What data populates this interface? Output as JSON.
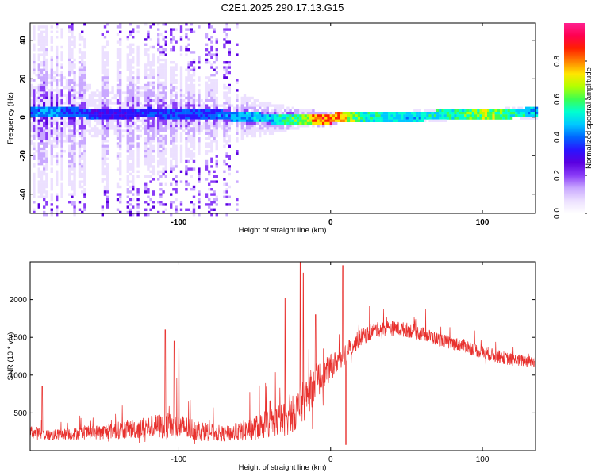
{
  "title": "C2E1.2025.290.17.13.G15",
  "colors": {
    "snr_line": "#e8302d",
    "colormap": [
      "#ffffff",
      "#ece0ff",
      "#c9a8ff",
      "#8a3cf7",
      "#5a00e0",
      "#2b14ff",
      "#0066ff",
      "#00c8ff",
      "#00ffd0",
      "#3cff50",
      "#b4ff00",
      "#ffe600",
      "#ff8000",
      "#ff2000",
      "#ff0050",
      "#ff2090"
    ]
  },
  "chart_data": [
    {
      "type": "heatmap",
      "name": "spectrogram",
      "xlabel": "Height of straight line (km)",
      "ylabel": "Frequency (Hz)",
      "xlim": [
        -198,
        135
      ],
      "ylim": [
        -50,
        49
      ],
      "xticks": [
        -100,
        0,
        100
      ],
      "xtick_labels": [
        "-100",
        "0",
        "100"
      ],
      "yticks": [
        -40,
        -20,
        0,
        20,
        40
      ],
      "ytick_labels": [
        "-40",
        "-20",
        "0",
        "20",
        "40"
      ],
      "colorbar": {
        "label": "Normalized spectral amplitude",
        "range": [
          0,
          1
        ],
        "ticks": [
          0.0,
          0.2,
          0.4,
          0.6,
          0.8
        ],
        "tick_labels": [
          "0.0",
          "0.2",
          "0.4",
          "0.6",
          "0.8"
        ]
      },
      "ridge": {
        "description_points_x": [
          -195,
          -185,
          -150,
          -120,
          -100,
          -80,
          -60,
          -40,
          -20,
          -10,
          0,
          5,
          20,
          50,
          80,
          100,
          130
        ],
        "frequency_hz": [
          3,
          4,
          2,
          3,
          2,
          2,
          1,
          0,
          0,
          0,
          0,
          1,
          1,
          1,
          2,
          2,
          3
        ],
        "peak_amplitude": [
          0.45,
          0.5,
          0.35,
          0.4,
          0.4,
          0.42,
          0.5,
          0.55,
          0.7,
          0.9,
          0.95,
          0.9,
          0.6,
          0.55,
          0.6,
          0.75,
          0.55
        ],
        "spread_hz": [
          45,
          45,
          40,
          35,
          25,
          20,
          12,
          8,
          5,
          4,
          4,
          3,
          3,
          3,
          3,
          3,
          3
        ]
      }
    },
    {
      "type": "line",
      "name": "snr",
      "xlabel": "Height of straight line (km)",
      "ylabel": "SNR (10 * v/v)",
      "xlim": [
        -198,
        135
      ],
      "ylim": [
        0,
        2500
      ],
      "xticks": [
        -100,
        0,
        100
      ],
      "xtick_labels": [
        "-100",
        "0",
        "100"
      ],
      "yticks": [
        500,
        1000,
        1500,
        2000
      ],
      "ytick_labels": [
        "500",
        "1000",
        "1500",
        "2000"
      ],
      "envelope": {
        "x": [
          -198,
          -185,
          -175,
          -150,
          -125,
          -110,
          -100,
          -90,
          -80,
          -70,
          -60,
          -50,
          -40,
          -30,
          -25,
          -20,
          -15,
          -10,
          -5,
          0,
          5,
          10,
          20,
          30,
          40,
          50,
          60,
          70,
          80,
          90,
          100,
          110,
          120,
          135
        ],
        "mean": [
          250,
          200,
          220,
          250,
          300,
          330,
          320,
          280,
          250,
          220,
          250,
          300,
          370,
          420,
          480,
          580,
          750,
          900,
          1000,
          1100,
          1200,
          1300,
          1500,
          1600,
          1620,
          1600,
          1550,
          1480,
          1420,
          1380,
          1300,
          1250,
          1200,
          1180
        ],
        "noise": [
          180,
          150,
          150,
          200,
          280,
          350,
          350,
          300,
          250,
          200,
          250,
          330,
          400,
          450,
          500,
          550,
          550,
          500,
          400,
          350,
          300,
          280,
          220,
          200,
          200,
          200,
          190,
          180,
          180,
          180,
          180,
          170,
          170,
          160
        ]
      },
      "spikes": [
        {
          "x": -190,
          "value": 850
        },
        {
          "x": -109,
          "value": 1600
        },
        {
          "x": -103,
          "value": 1450
        },
        {
          "x": -100,
          "value": 1350
        },
        {
          "x": -30,
          "value": 2020
        },
        {
          "x": -20,
          "value": 2500
        },
        {
          "x": -18,
          "value": 2350
        },
        {
          "x": -10,
          "value": 1800
        },
        {
          "x": 8,
          "value": 2450
        },
        {
          "x": 10,
          "value": 80
        }
      ]
    }
  ]
}
